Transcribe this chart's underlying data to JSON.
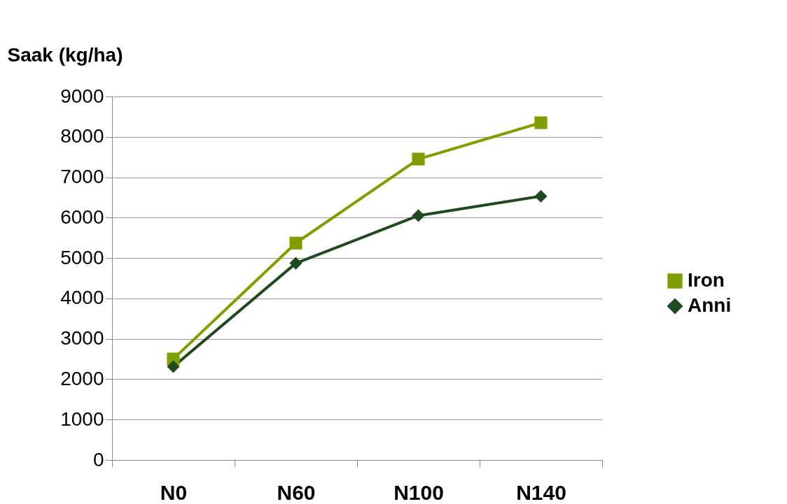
{
  "chart_data": {
    "type": "line",
    "ylabel": "Saak (kg/ha)",
    "categories": [
      "N0",
      "N60",
      "N100",
      "N140"
    ],
    "series": [
      {
        "name": "Iron",
        "color": "#7f9f00",
        "marker": "square",
        "values": [
          2500,
          5370,
          7450,
          8350
        ]
      },
      {
        "name": "Anni",
        "color": "#1f4a1f",
        "marker": "diamond",
        "values": [
          2310,
          4870,
          6050,
          6530
        ]
      }
    ],
    "ylim": [
      0,
      9000
    ],
    "yticks": [
      0,
      1000,
      2000,
      3000,
      4000,
      5000,
      6000,
      7000,
      8000,
      9000
    ],
    "grid": "y",
    "legend": "right",
    "line_style": "solid"
  }
}
